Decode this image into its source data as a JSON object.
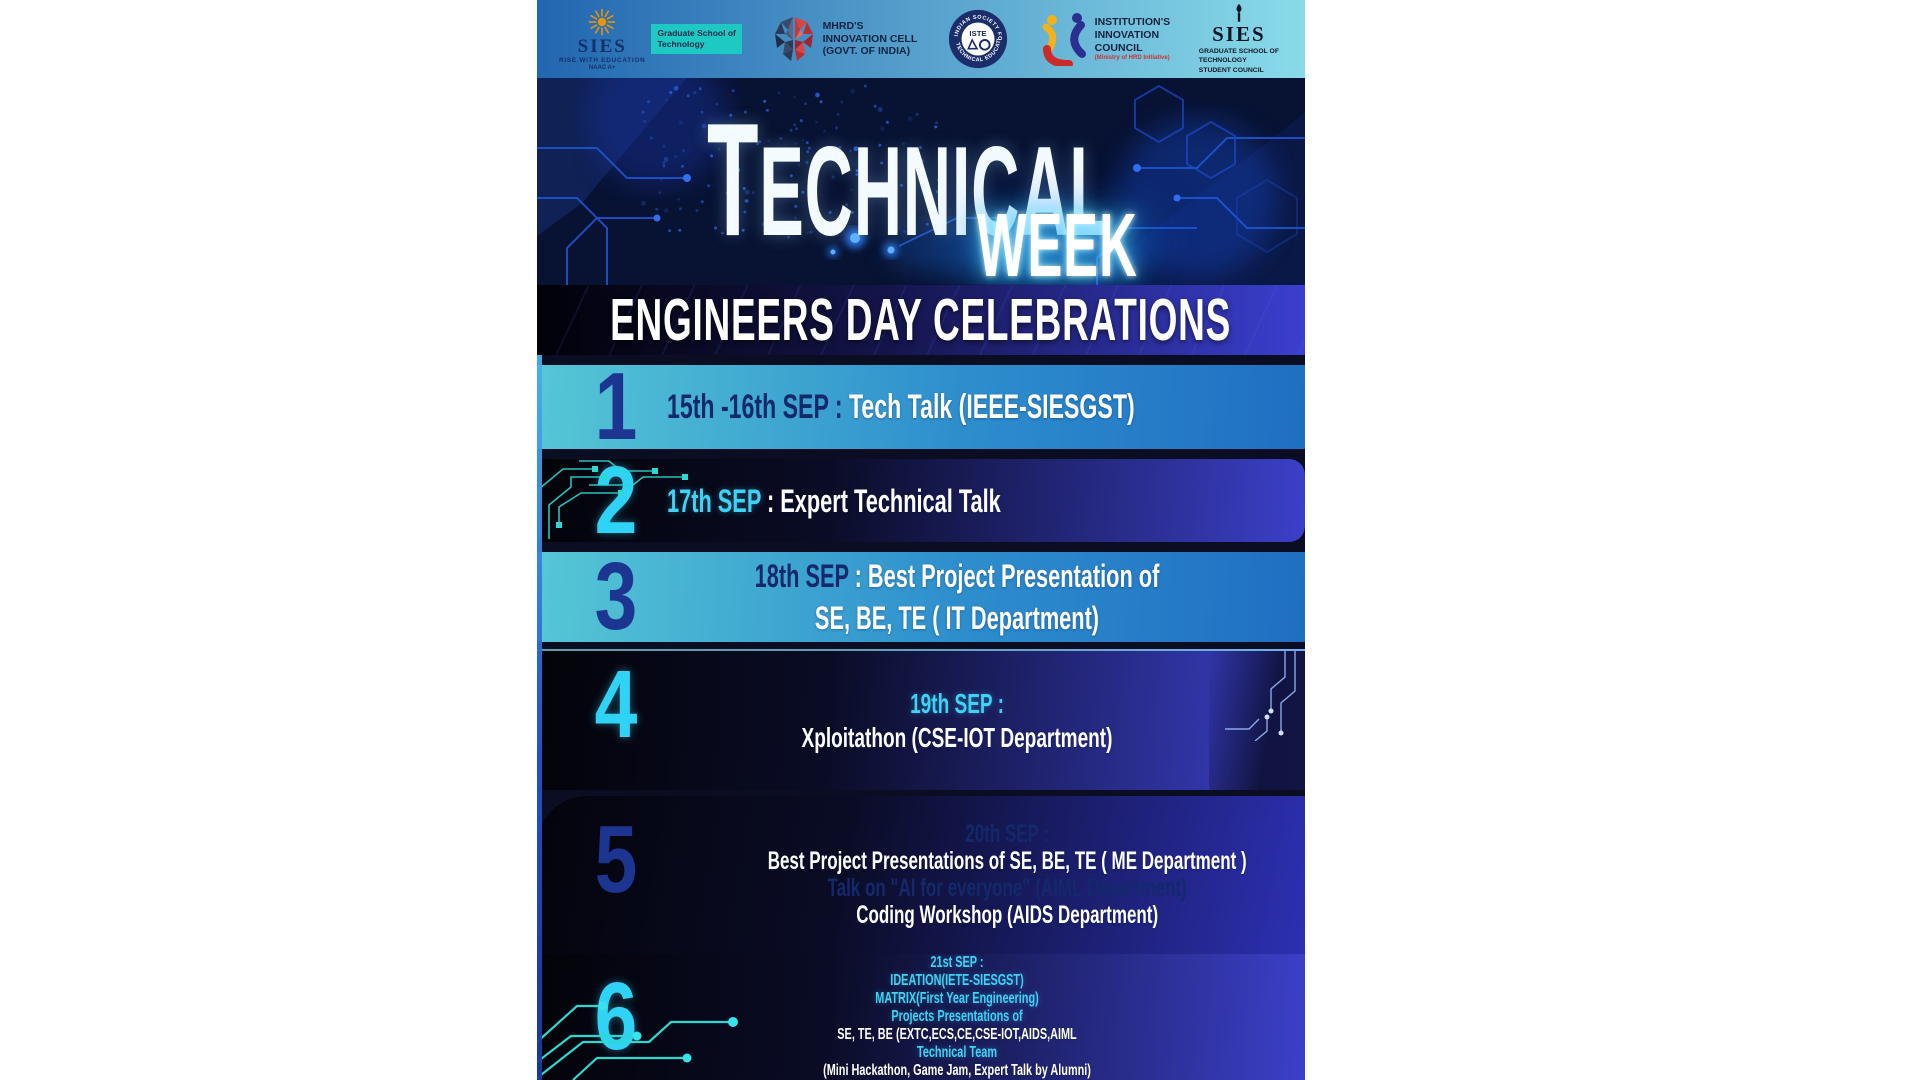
{
  "poster": {
    "header": {
      "logos": {
        "sies": {
          "acronym": "SIES",
          "school_line1": "Graduate School of",
          "school_line2": "Technology",
          "tagline": "RISE WITH EDUCATION",
          "accreditation": "NAAC A+"
        },
        "mhrd": {
          "line1": "MHRD'S",
          "line2": "INNOVATION CELL",
          "line3": "(GOVT. OF INDIA)"
        },
        "iste": {
          "center": "ISTE",
          "ring_top": "INDIAN SOCIETY FOR",
          "ring_bottom": "TECHNICAL EDUCATION"
        },
        "iic": {
          "line1": "INSTITUTION'S",
          "line2": "INNOVATION",
          "line3": "COUNCIL",
          "line4": "(Ministry of HRD Initiative)"
        },
        "student_council": {
          "acronym": "SIES",
          "line1": "GRADUATE SCHOOL OF",
          "line2": "TECHNOLOGY",
          "line3": "STUDENT COUNCIL"
        }
      }
    },
    "title": {
      "word1": "TECHNICAL",
      "word2": "WEEK"
    },
    "banner": {
      "text": "ENGINEERS DAY CELEBRATIONS"
    },
    "events": [
      {
        "number": "1",
        "theme": "cyan",
        "align": "left",
        "lines": [
          [
            {
              "t": "15th -16th SEP : ",
              "c": "navy"
            },
            {
              "t": " Tech Talk (IEEE-SIESGST)",
              "c": "white"
            }
          ]
        ]
      },
      {
        "number": "2",
        "theme": "dark",
        "align": "left",
        "lines": [
          [
            {
              "t": "17th SEP ",
              "c": "cyan"
            },
            {
              "t": ": Expert Technical Talk",
              "c": "white"
            }
          ]
        ]
      },
      {
        "number": "3",
        "theme": "cyan",
        "align": "center",
        "lines": [
          [
            {
              "t": "18th SEP ",
              "c": "navy"
            },
            {
              "t": " : Best Project Presentation of",
              "c": "white"
            }
          ],
          [
            {
              "t": "SE, BE, TE ( IT Department)",
              "c": "white"
            }
          ]
        ]
      },
      {
        "number": "4",
        "theme": "dark",
        "align": "center",
        "lines": [
          [
            {
              "t": "19th SEP :",
              "c": "cyan"
            }
          ],
          [
            {
              "t": "Xploitathon (CSE-IOT Department)",
              "c": "white"
            }
          ]
        ]
      },
      {
        "number": "5",
        "theme": "cyan",
        "align": "center",
        "lines": [
          [
            {
              "t": "20th SEP :",
              "c": "navy"
            }
          ],
          [
            {
              "t": "Best Project Presentations of SE, BE, TE ( ME Department )",
              "c": "white"
            }
          ],
          [
            {
              "t": "Talk on \"AI for everyone\" (AIML Department)",
              "c": "navy"
            }
          ],
          [
            {
              "t": "Coding Workshop (AIDS Department)",
              "c": "white"
            }
          ]
        ]
      },
      {
        "number": "6",
        "theme": "dark",
        "align": "center",
        "lines": [
          [
            {
              "t": "21st SEP :",
              "c": "cyan"
            }
          ],
          [
            {
              "t": "IDEATION(IETE-SIESGST)",
              "c": "cyan"
            }
          ],
          [
            {
              "t": "MATRIX(First Year Engineering)",
              "c": "cyan"
            }
          ],
          [
            {
              "t": "Projects Presentations of",
              "c": "cyan"
            }
          ],
          [
            {
              "t": "SE, TE, BE (EXTC,ECS,CE,CSE-IOT,AIDS,AIML",
              "c": "white"
            }
          ],
          [
            {
              "t": "Technical Team",
              "c": "cyan"
            }
          ],
          [
            {
              "t": "(Mini Hackathon, Game Jam, Expert Talk by Alumni)",
              "c": "white"
            }
          ]
        ]
      }
    ],
    "colors": {
      "accent_cyan": "#3fd2f4",
      "text_navy": "#13296b",
      "number_navy": "#1c3590",
      "number_cyan": "#2ed3f6",
      "row_cyan_start": "#55c7d6",
      "row_cyan_end": "#1f6ec2",
      "row_dark_start": "#030309",
      "row_dark_end": "#3b40c9",
      "header_start": "#2166b0",
      "header_end": "#8adbe9",
      "banner_start": "#010108",
      "banner_end": "#3a3fd0",
      "title_bg": "#081232",
      "circuit_teal": "#2bd8d2"
    }
  }
}
